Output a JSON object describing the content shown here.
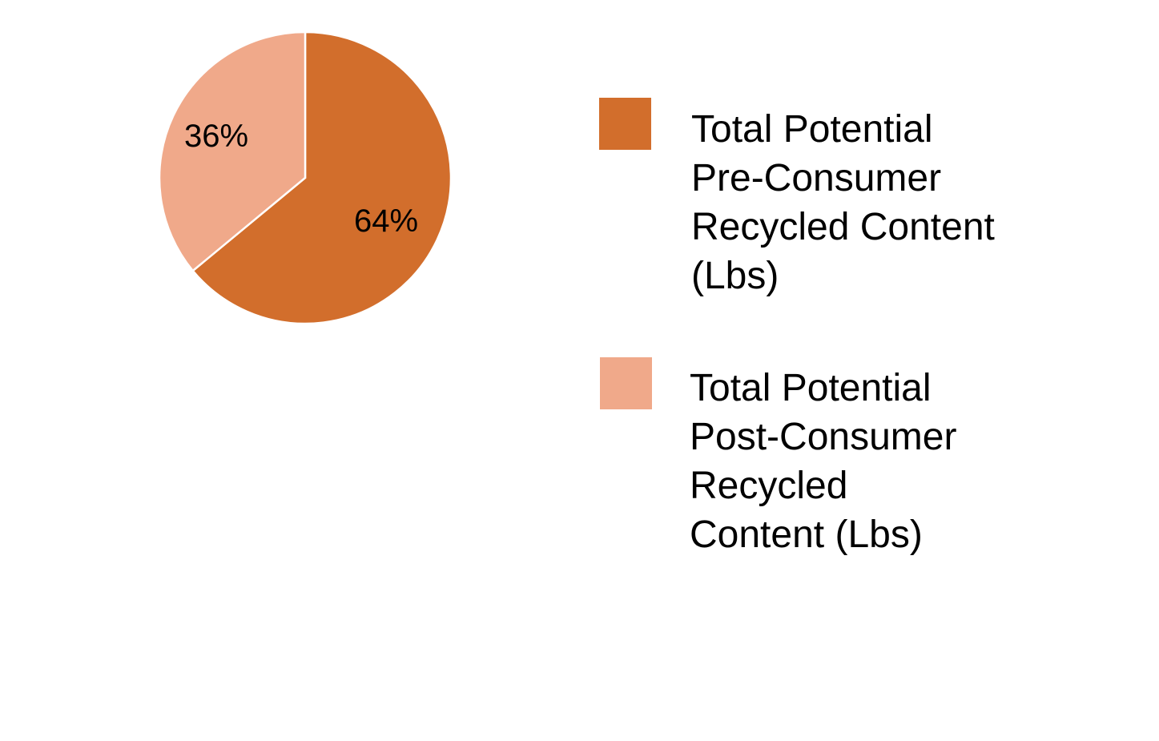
{
  "chart_data": {
    "type": "pie",
    "title": "",
    "categories": [
      "Total Potential Pre-Consumer Recycled Content (Lbs)",
      "Total Potential Post-Consumer Recycled Content (Lbs)"
    ],
    "values": [
      64,
      36
    ],
    "labels": [
      "64%",
      "36%"
    ],
    "colors": [
      "#D26E2C",
      "#F0A98A"
    ],
    "start_angle_deg": 0,
    "direction": "clockwise",
    "legend_position": "right"
  },
  "pie": {
    "slice_labels": [
      "64%",
      "36%"
    ]
  },
  "legend": {
    "items": [
      {
        "color": "#D26E2C",
        "lines": [
          "Total Potential",
          "Pre-Consumer",
          "Recycled Content",
          "(Lbs)"
        ]
      },
      {
        "color": "#F0A98A",
        "lines": [
          "Total Potential",
          "Post-Consumer",
          "Recycled",
          "Content (Lbs)"
        ]
      }
    ]
  }
}
